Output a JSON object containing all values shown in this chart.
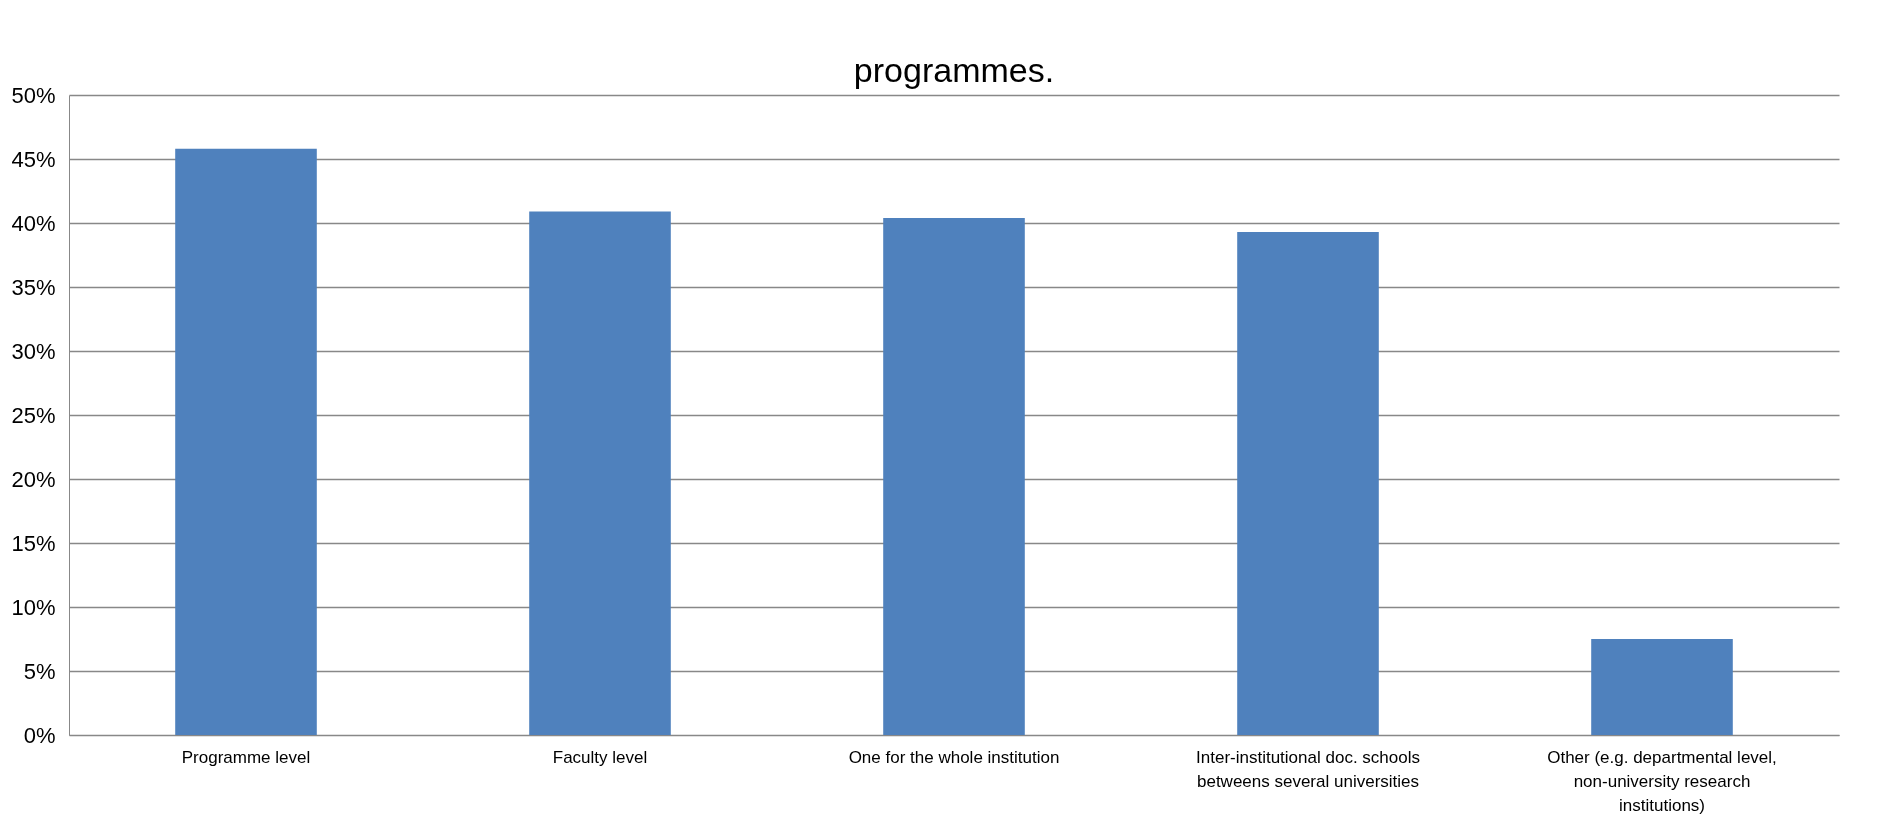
{
  "chart_data": {
    "type": "bar",
    "categories": [
      "Programme level",
      "Faculty level",
      "One for the whole institution",
      "Inter-institutional doc. schools betweens several universities",
      "Other (e.g. departmental level, non-university research institutions)"
    ],
    "values": [
      45.8,
      40.9,
      40.4,
      39.3,
      7.5
    ],
    "color": "#4f81bd",
    "ylim": [
      0,
      50
    ],
    "yticks": [
      {
        "value": 0,
        "label": "0%"
      },
      {
        "value": 5,
        "label": "5%"
      },
      {
        "value": 10,
        "label": "10%"
      },
      {
        "value": 15,
        "label": "15%"
      },
      {
        "value": 20,
        "label": "20%"
      },
      {
        "value": 25,
        "label": "25%"
      },
      {
        "value": 30,
        "label": "30%"
      },
      {
        "value": 35,
        "label": "35%"
      },
      {
        "value": 40,
        "label": "40%"
      },
      {
        "value": 45,
        "label": "45%"
      },
      {
        "value": 50,
        "label": "50%"
      }
    ],
    "grid": "y",
    "annotations": [
      "programmes."
    ]
  }
}
